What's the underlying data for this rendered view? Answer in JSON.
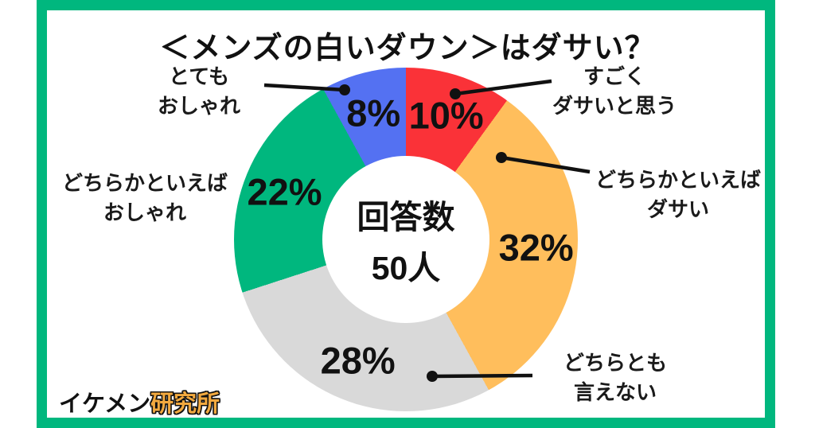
{
  "title": "＜メンズの白いダウン＞はダサい？",
  "frame_color": "#00B77E",
  "center": {
    "line1": "回答数",
    "line2": "50人"
  },
  "footer": {
    "brand_black": "イケメン",
    "brand_orange": "研究所",
    "brand_orange_color": "#F2A93F"
  },
  "chart_data": {
    "type": "pie",
    "subtype": "donut",
    "title": "＜メンズの白いダウン＞はダサい？",
    "center_label": "回答数 50人",
    "total_responses": 50,
    "start_angle_deg": 0,
    "direction": "clockwise",
    "legend": "none (callout labels with leader lines)",
    "segments": [
      {
        "label": "すごくダサいと思う",
        "value_pct": 10,
        "color": "#FA3238"
      },
      {
        "label": "どちらかといえばダサい",
        "value_pct": 32,
        "color": "#FFBE5C"
      },
      {
        "label": "どちらとも言えない",
        "value_pct": 28,
        "color": "#D9D9D9"
      },
      {
        "label": "どちらかといえばおしゃれ",
        "value_pct": 22,
        "color": "#00B77E"
      },
      {
        "label": "とてもおしゃれ",
        "value_pct": 8,
        "color": "#5471F2"
      }
    ]
  },
  "callouts": {
    "totemo": {
      "line1": "とても",
      "line2": "おしゃれ"
    },
    "sugoku": {
      "line1": "すごく",
      "line2": "ダサいと思う"
    },
    "dochira_dasai": {
      "line1": "どちらかといえば",
      "line2": "ダサい"
    },
    "dochiratomo": {
      "line1": "どちらとも",
      "line2": "言えない"
    },
    "dochira_oshare": {
      "line1": "どちらかといえば",
      "line2": "おしゃれ"
    }
  }
}
